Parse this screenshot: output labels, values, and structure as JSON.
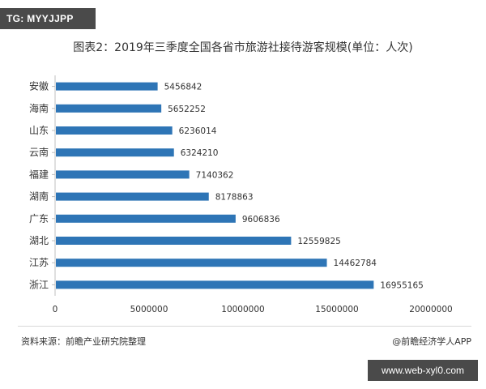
{
  "badge_text": "TG: MYYJJPP",
  "url_badge": "www.web-xyl0.com",
  "chart_data": {
    "type": "bar",
    "orientation": "horizontal",
    "title": "图表2：2019年三季度全国各省市旅游社接待游客规模(单位：人次)",
    "categories": [
      "安徽",
      "海南",
      "山东",
      "云南",
      "福建",
      "湖南",
      "广东",
      "湖北",
      "江苏",
      "浙江"
    ],
    "values": [
      5456842,
      5652252,
      6236014,
      6324210,
      7140362,
      8178863,
      9606836,
      12559825,
      14462784,
      16955165
    ],
    "xlim": [
      0,
      20000000
    ],
    "xticks": [
      "0",
      "5000000",
      "10000000",
      "15000000",
      "20000000"
    ],
    "bar_color": "#2e75b6",
    "grid": false,
    "source": "资料来源：前瞻产业研究院整理",
    "credit": "@前瞻经济学人APP"
  }
}
